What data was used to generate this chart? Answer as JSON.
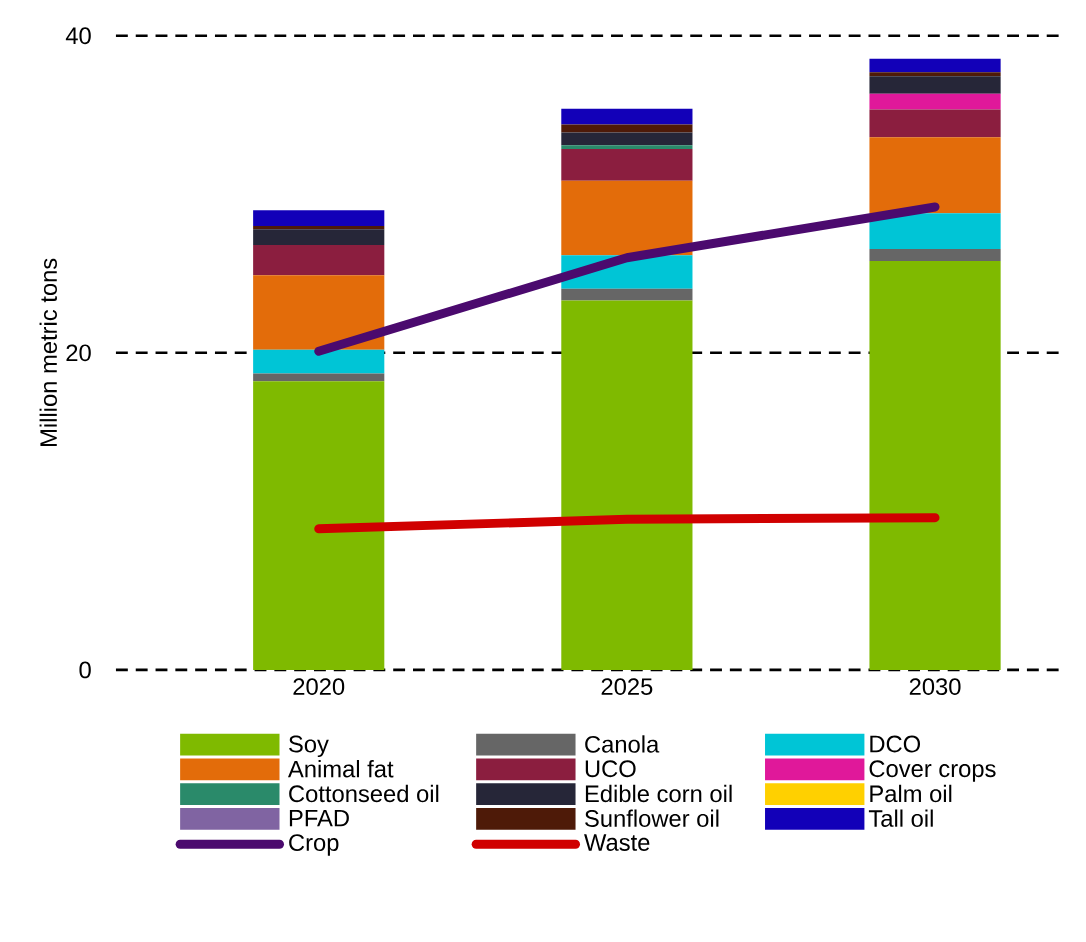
{
  "chart_data": {
    "type": "bar",
    "stacked": true,
    "ylabel": "Million metric tons",
    "categories": [
      "2020",
      "2025",
      "2030"
    ],
    "ylim": [
      0,
      40
    ],
    "yticks": [
      0,
      20,
      40
    ],
    "grid": "y",
    "legend": "bottom",
    "series": [
      {
        "name": "Soy",
        "color": "#7fba00",
        "values": [
          18.2,
          23.3,
          25.8
        ]
      },
      {
        "name": "Canola",
        "color": "#666666",
        "values": [
          0.5,
          0.75,
          0.75
        ]
      },
      {
        "name": "DCO",
        "color": "#00c5d6",
        "values": [
          1.5,
          2.1,
          2.25
        ]
      },
      {
        "name": "Animal fat",
        "color": "#e36c0a",
        "values": [
          4.7,
          4.7,
          4.8
        ]
      },
      {
        "name": "UCO",
        "color": "#8b1e3f",
        "values": [
          1.9,
          2.0,
          1.75
        ]
      },
      {
        "name": "Cover crops",
        "color": "#e0189a",
        "values": [
          0,
          0,
          1.0
        ]
      },
      {
        "name": "Cottonseed oil",
        "color": "#2a8a6a",
        "values": [
          0,
          0.25,
          0
        ]
      },
      {
        "name": "Edible corn oil",
        "color": "#262638",
        "values": [
          1.0,
          0.8,
          1.1
        ]
      },
      {
        "name": "Palm oil",
        "color": "#ffd000",
        "values": [
          0,
          0,
          0
        ]
      },
      {
        "name": "PFAD",
        "color": "#8064a2",
        "values": [
          0,
          0,
          0
        ]
      },
      {
        "name": "Sunflower oil",
        "color": "#4e1a08",
        "values": [
          0.2,
          0.5,
          0.25
        ]
      },
      {
        "name": "Tall oil",
        "color": "#1200b8",
        "values": [
          1.0,
          1.0,
          0.85
        ]
      },
      {
        "name": "Crop",
        "type": "line",
        "color": "#4b0a6e",
        "values": [
          20.1,
          26.0,
          29.2
        ]
      },
      {
        "name": "Waste",
        "type": "line",
        "color": "#d00000",
        "values": [
          8.9,
          9.5,
          9.6
        ]
      }
    ]
  }
}
